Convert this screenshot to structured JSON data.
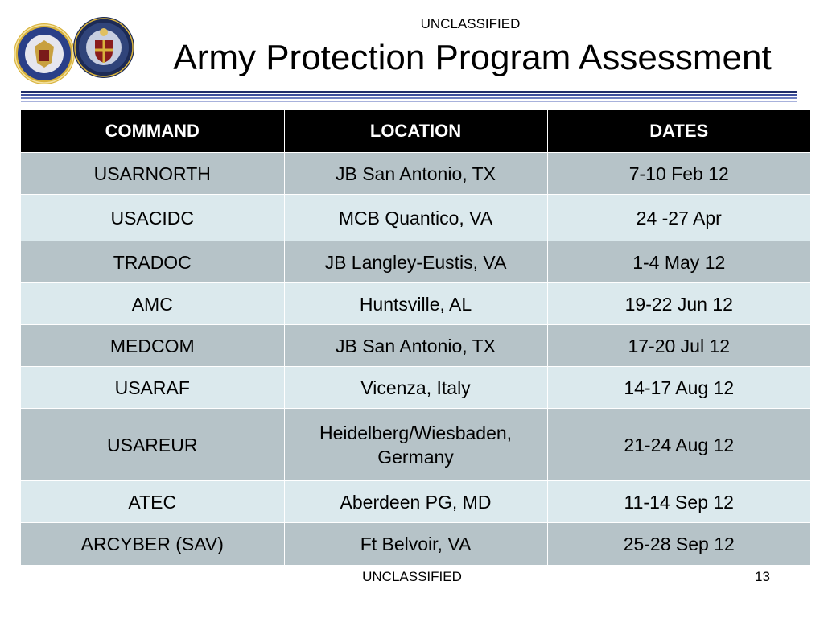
{
  "header": {
    "classification": "UNCLASSIFIED",
    "title": "Army Protection Program Assessment"
  },
  "seals": [
    "dod-seal",
    "army-intelligence-seal"
  ],
  "table": {
    "headers": [
      "COMMAND",
      "LOCATION",
      "DATES"
    ],
    "rows": [
      {
        "command": "USARNORTH",
        "location": "JB San Antonio, TX",
        "dates": "7-10 Feb 12"
      },
      {
        "command": "USACIDC",
        "location": "MCB Quantico, VA",
        "dates": "24 -27 Apr"
      },
      {
        "command": "TRADOC",
        "location": "JB Langley-Eustis, VA",
        "dates": "1-4 May 12"
      },
      {
        "command": "AMC",
        "location": "Huntsville, AL",
        "dates": "19-22 Jun 12"
      },
      {
        "command": "MEDCOM",
        "location": "JB San Antonio, TX",
        "dates": "17-20 Jul 12"
      },
      {
        "command": "USARAF",
        "location": "Vicenza, Italy",
        "dates": "14-17 Aug 12"
      },
      {
        "command": "USAREUR",
        "location": "Heidelberg/Wiesbaden, Germany",
        "dates": "21-24 Aug 12"
      },
      {
        "command": "ATEC",
        "location": "Aberdeen PG, MD",
        "dates": "11-14 Sep 12"
      },
      {
        "command": "ARCYBER (SAV)",
        "location": "Ft Belvoir, VA",
        "dates": "25-28 Sep 12"
      }
    ]
  },
  "footer": {
    "classification": "UNCLASSIFIED",
    "page_number": "13"
  }
}
